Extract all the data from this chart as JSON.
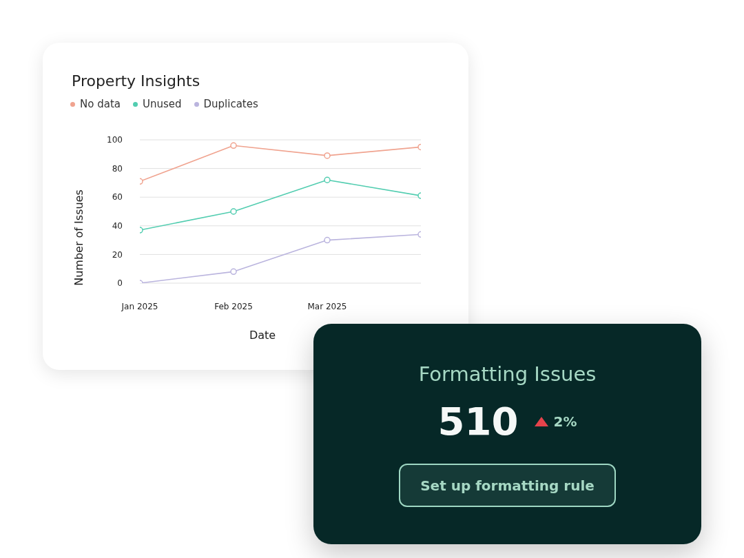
{
  "chart_data": [
    {
      "type": "line",
      "title": "Property Insights",
      "categories": [
        "Jan 2025",
        "Feb 2025",
        "Mar 2025",
        null
      ],
      "series": [
        {
          "name": "No data",
          "color": "#f0a38f",
          "values": [
            71,
            96,
            89,
            95
          ]
        },
        {
          "name": "Unused",
          "color": "#52cdb0",
          "values": [
            37,
            50,
            72,
            61
          ]
        },
        {
          "name": "Duplicates",
          "color": "#bab4de",
          "values": [
            0,
            8,
            30,
            34
          ]
        }
      ],
      "xlabel": "Date",
      "ylabel": "Number of Issues",
      "ylim": [
        0,
        100
      ],
      "yticks": [
        0,
        20,
        40,
        60,
        80,
        100
      ],
      "grid": "y",
      "legend": "top left",
      "marker": "circle"
    },
    {
      "type": "other",
      "title": "Formatting Issues",
      "annotations": [
        "510",
        "2%",
        "Set up formatting rule"
      ]
    }
  ]
}
